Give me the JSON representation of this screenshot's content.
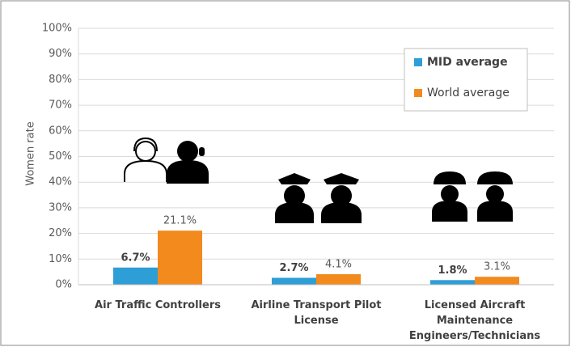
{
  "chart_data": {
    "type": "bar",
    "y_label": "Women rate",
    "categories": [
      "Air Traffic Controllers",
      "Airline Transport Pilot License",
      "Licensed Aircraft Maintenance Engineers/Technicians"
    ],
    "series": [
      {
        "name": "MID average",
        "color": "#2e9ed6",
        "values": [
          6.7,
          2.7,
          1.8
        ],
        "value_labels": [
          "6.7%",
          "2.7%",
          "1.8%"
        ]
      },
      {
        "name": "World average",
        "color": "#f28a1e",
        "values": [
          21.1,
          4.1,
          3.1
        ],
        "value_labels": [
          "21.1%",
          "4.1%",
          "3.1%"
        ]
      }
    ],
    "ylim": [
      0,
      100
    ],
    "yticks": [
      {
        "value": 0,
        "label": "0%"
      },
      {
        "value": 10,
        "label": "10%"
      },
      {
        "value": 20,
        "label": "20%"
      },
      {
        "value": 30,
        "label": "30%"
      },
      {
        "value": 40,
        "label": "40%"
      },
      {
        "value": 50,
        "label": "50%"
      },
      {
        "value": 60,
        "label": "60%"
      },
      {
        "value": 70,
        "label": "70%"
      },
      {
        "value": 80,
        "label": "80%"
      },
      {
        "value": 90,
        "label": "90%"
      },
      {
        "value": 100,
        "label": "100%"
      }
    ],
    "grid": true,
    "legend": "upper right"
  }
}
